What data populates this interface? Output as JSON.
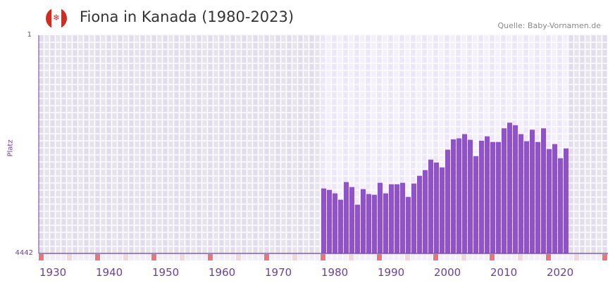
{
  "header": {
    "title": "Fiona in Kanada (1980-2023)",
    "source": "Quelle: Baby-Vornamen.de",
    "flag": "canada-flag-icon"
  },
  "colors": {
    "bar": "#8c54c8",
    "axis": "#6b3fa0",
    "marker_decade": "#e8747c",
    "marker_half": "#f3d5de"
  },
  "chart_data": {
    "type": "bar",
    "title": "Fiona in Kanada (1980-2023)",
    "xlabel": "",
    "ylabel": "Platz",
    "y_scale": "log",
    "ylim": [
      4442,
      1
    ],
    "y_ticks": [
      "1",
      "4442"
    ],
    "x_range": [
      1930,
      2030
    ],
    "x_ticks": [
      "1930",
      "1940",
      "1950",
      "1960",
      "1970",
      "1980",
      "1990",
      "2000",
      "2010",
      "2020"
    ],
    "highlight_range": [
      1980,
      2023
    ],
    "years": [
      1980,
      1981,
      1982,
      1983,
      1984,
      1985,
      1986,
      1987,
      1988,
      1989,
      1990,
      1991,
      1992,
      1993,
      1994,
      1995,
      1996,
      1997,
      1998,
      1999,
      2000,
      2001,
      2002,
      2003,
      2004,
      2005,
      2006,
      2007,
      2008,
      2009,
      2010,
      2011,
      2012,
      2013,
      2014,
      2015,
      2016,
      2017,
      2018,
      2019,
      2020,
      2021,
      2022,
      2023
    ],
    "values": [
      364,
      385,
      440,
      562,
      285,
      345,
      679,
      374,
      452,
      465,
      293,
      440,
      310,
      310,
      293,
      504,
      301,
      224,
      180,
      120,
      134,
      162,
      82,
      55,
      53,
      45,
      56,
      105,
      58,
      49,
      61,
      61,
      36,
      29,
      32,
      45,
      59,
      38,
      61,
      36,
      80,
      66,
      114,
      78
    ]
  }
}
